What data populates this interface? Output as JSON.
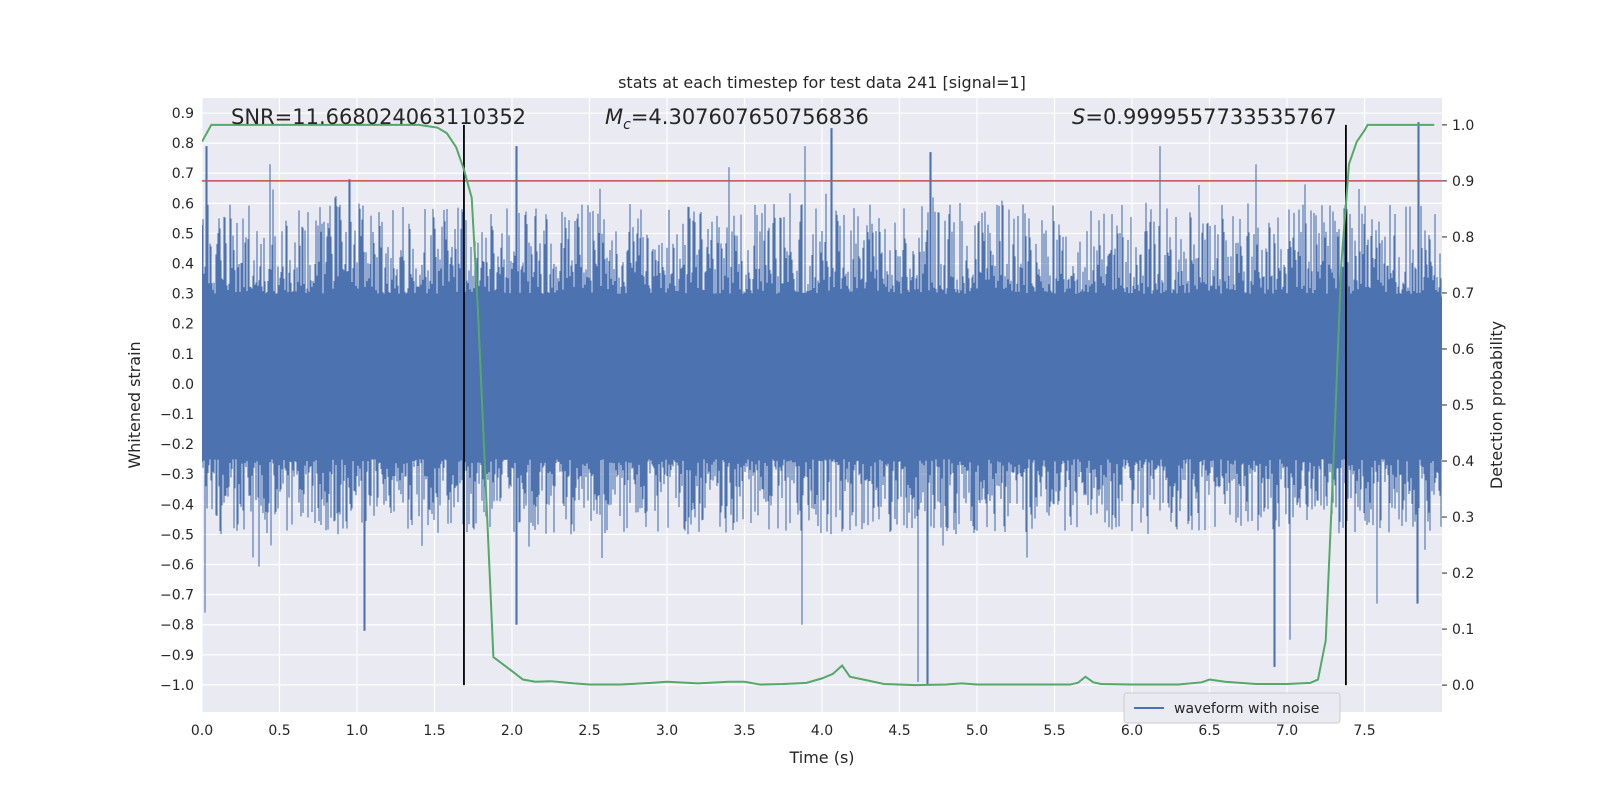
{
  "chart_data": {
    "type": "line",
    "title": "stats at each timestep for test data 241 [signal=1]",
    "xlabel": "Time (s)",
    "ylabel": "Whitened strain",
    "y2label": "Detection probability",
    "xlim": [
      0.0,
      8.0
    ],
    "ylim": [
      -1.09,
      0.95
    ],
    "y2lim": [
      -0.048,
      1.048
    ],
    "xticks": [
      "0.0",
      "0.5",
      "1.0",
      "1.5",
      "2.0",
      "2.5",
      "3.0",
      "3.5",
      "4.0",
      "4.5",
      "5.0",
      "5.5",
      "6.0",
      "6.5",
      "7.0",
      "7.5"
    ],
    "yticks": [
      "0.9",
      "0.8",
      "0.7",
      "0.6",
      "0.5",
      "0.4",
      "0.3",
      "0.2",
      "0.1",
      "0.0",
      "−0.1",
      "−0.2",
      "−0.3",
      "−0.4",
      "−0.5",
      "−0.6",
      "−0.7",
      "−0.8",
      "−0.9",
      "−1.0"
    ],
    "y2ticks": [
      "1.0",
      "0.9",
      "0.8",
      "0.7",
      "0.6",
      "0.5",
      "0.4",
      "0.3",
      "0.2",
      "0.1",
      "0.0"
    ],
    "annotations": {
      "snr": "SNR=11.668024063110352",
      "mc_symbol": "M",
      "mc_sub": "c",
      "mc_value": "=4.307607650756836",
      "s_symbol": "S",
      "s_value": "=0.9999557733535767"
    },
    "threshold": {
      "axis": "right",
      "value": 0.9,
      "color": "#c44e52"
    },
    "vlines": {
      "x": [
        1.69,
        7.38
      ],
      "color": "#000000"
    },
    "waveform": {
      "name": "waveform with noise",
      "color": "#4c72b0",
      "duration": 8.0,
      "typical_max_range": [
        0.3,
        0.6
      ],
      "typical_min_range": [
        -0.5,
        -0.25
      ],
      "peaks": [
        {
          "x": 0.03,
          "y": 0.79
        },
        {
          "x": 0.44,
          "y": 0.73
        },
        {
          "x": 0.95,
          "y": 0.68
        },
        {
          "x": 2.03,
          "y": 0.79
        },
        {
          "x": 3.4,
          "y": 0.72
        },
        {
          "x": 3.89,
          "y": 0.79
        },
        {
          "x": 4.06,
          "y": 0.85
        },
        {
          "x": 4.7,
          "y": 0.77
        },
        {
          "x": 6.18,
          "y": 0.79
        },
        {
          "x": 6.8,
          "y": 0.73
        },
        {
          "x": 7.85,
          "y": 0.87
        }
      ],
      "troughs": [
        {
          "x": 0.02,
          "y": -0.76
        },
        {
          "x": 1.05,
          "y": -0.82
        },
        {
          "x": 2.03,
          "y": -0.8
        },
        {
          "x": 3.87,
          "y": -0.8
        },
        {
          "x": 4.62,
          "y": -0.99
        },
        {
          "x": 4.68,
          "y": -1.0
        },
        {
          "x": 6.92,
          "y": -0.94
        },
        {
          "x": 7.02,
          "y": -0.85
        },
        {
          "x": 7.58,
          "y": -0.73
        },
        {
          "x": 7.84,
          "y": -0.73
        }
      ]
    },
    "probability": {
      "color": "#55a868",
      "x": [
        0.0,
        0.06,
        0.2,
        0.5,
        0.8,
        1.1,
        1.4,
        1.52,
        1.58,
        1.64,
        1.69,
        1.74,
        1.78,
        1.88,
        2.0,
        2.07,
        2.15,
        2.25,
        2.4,
        2.5,
        2.7,
        2.9,
        3.0,
        3.2,
        3.4,
        3.5,
        3.6,
        3.75,
        3.9,
        4.0,
        4.07,
        4.13,
        4.18,
        4.3,
        4.4,
        4.6,
        4.8,
        4.9,
        5.0,
        5.3,
        5.6,
        5.65,
        5.7,
        5.75,
        5.8,
        6.0,
        6.3,
        6.45,
        6.5,
        6.6,
        6.8,
        7.0,
        7.15,
        7.2,
        7.25,
        7.3,
        7.35,
        7.4,
        7.45,
        7.5,
        7.52,
        7.6,
        7.95
      ],
      "y": [
        0.97,
        1.0,
        1.0,
        1.0,
        1.0,
        1.0,
        1.0,
        0.995,
        0.985,
        0.96,
        0.92,
        0.87,
        0.67,
        0.05,
        0.025,
        0.01,
        0.006,
        0.007,
        0.003,
        0.001,
        0.001,
        0.004,
        0.006,
        0.003,
        0.006,
        0.006,
        0.001,
        0.002,
        0.004,
        0.012,
        0.02,
        0.035,
        0.015,
        0.008,
        0.002,
        0.0,
        0.001,
        0.003,
        0.001,
        0.001,
        0.001,
        0.004,
        0.015,
        0.005,
        0.002,
        0.001,
        0.001,
        0.005,
        0.01,
        0.006,
        0.002,
        0.002,
        0.004,
        0.01,
        0.08,
        0.4,
        0.75,
        0.93,
        0.97,
        0.99,
        1.0,
        1.0,
        1.0
      ]
    },
    "legend": {
      "placement": "lower-center-right",
      "entries": [
        "waveform with noise"
      ]
    },
    "grid": true
  }
}
